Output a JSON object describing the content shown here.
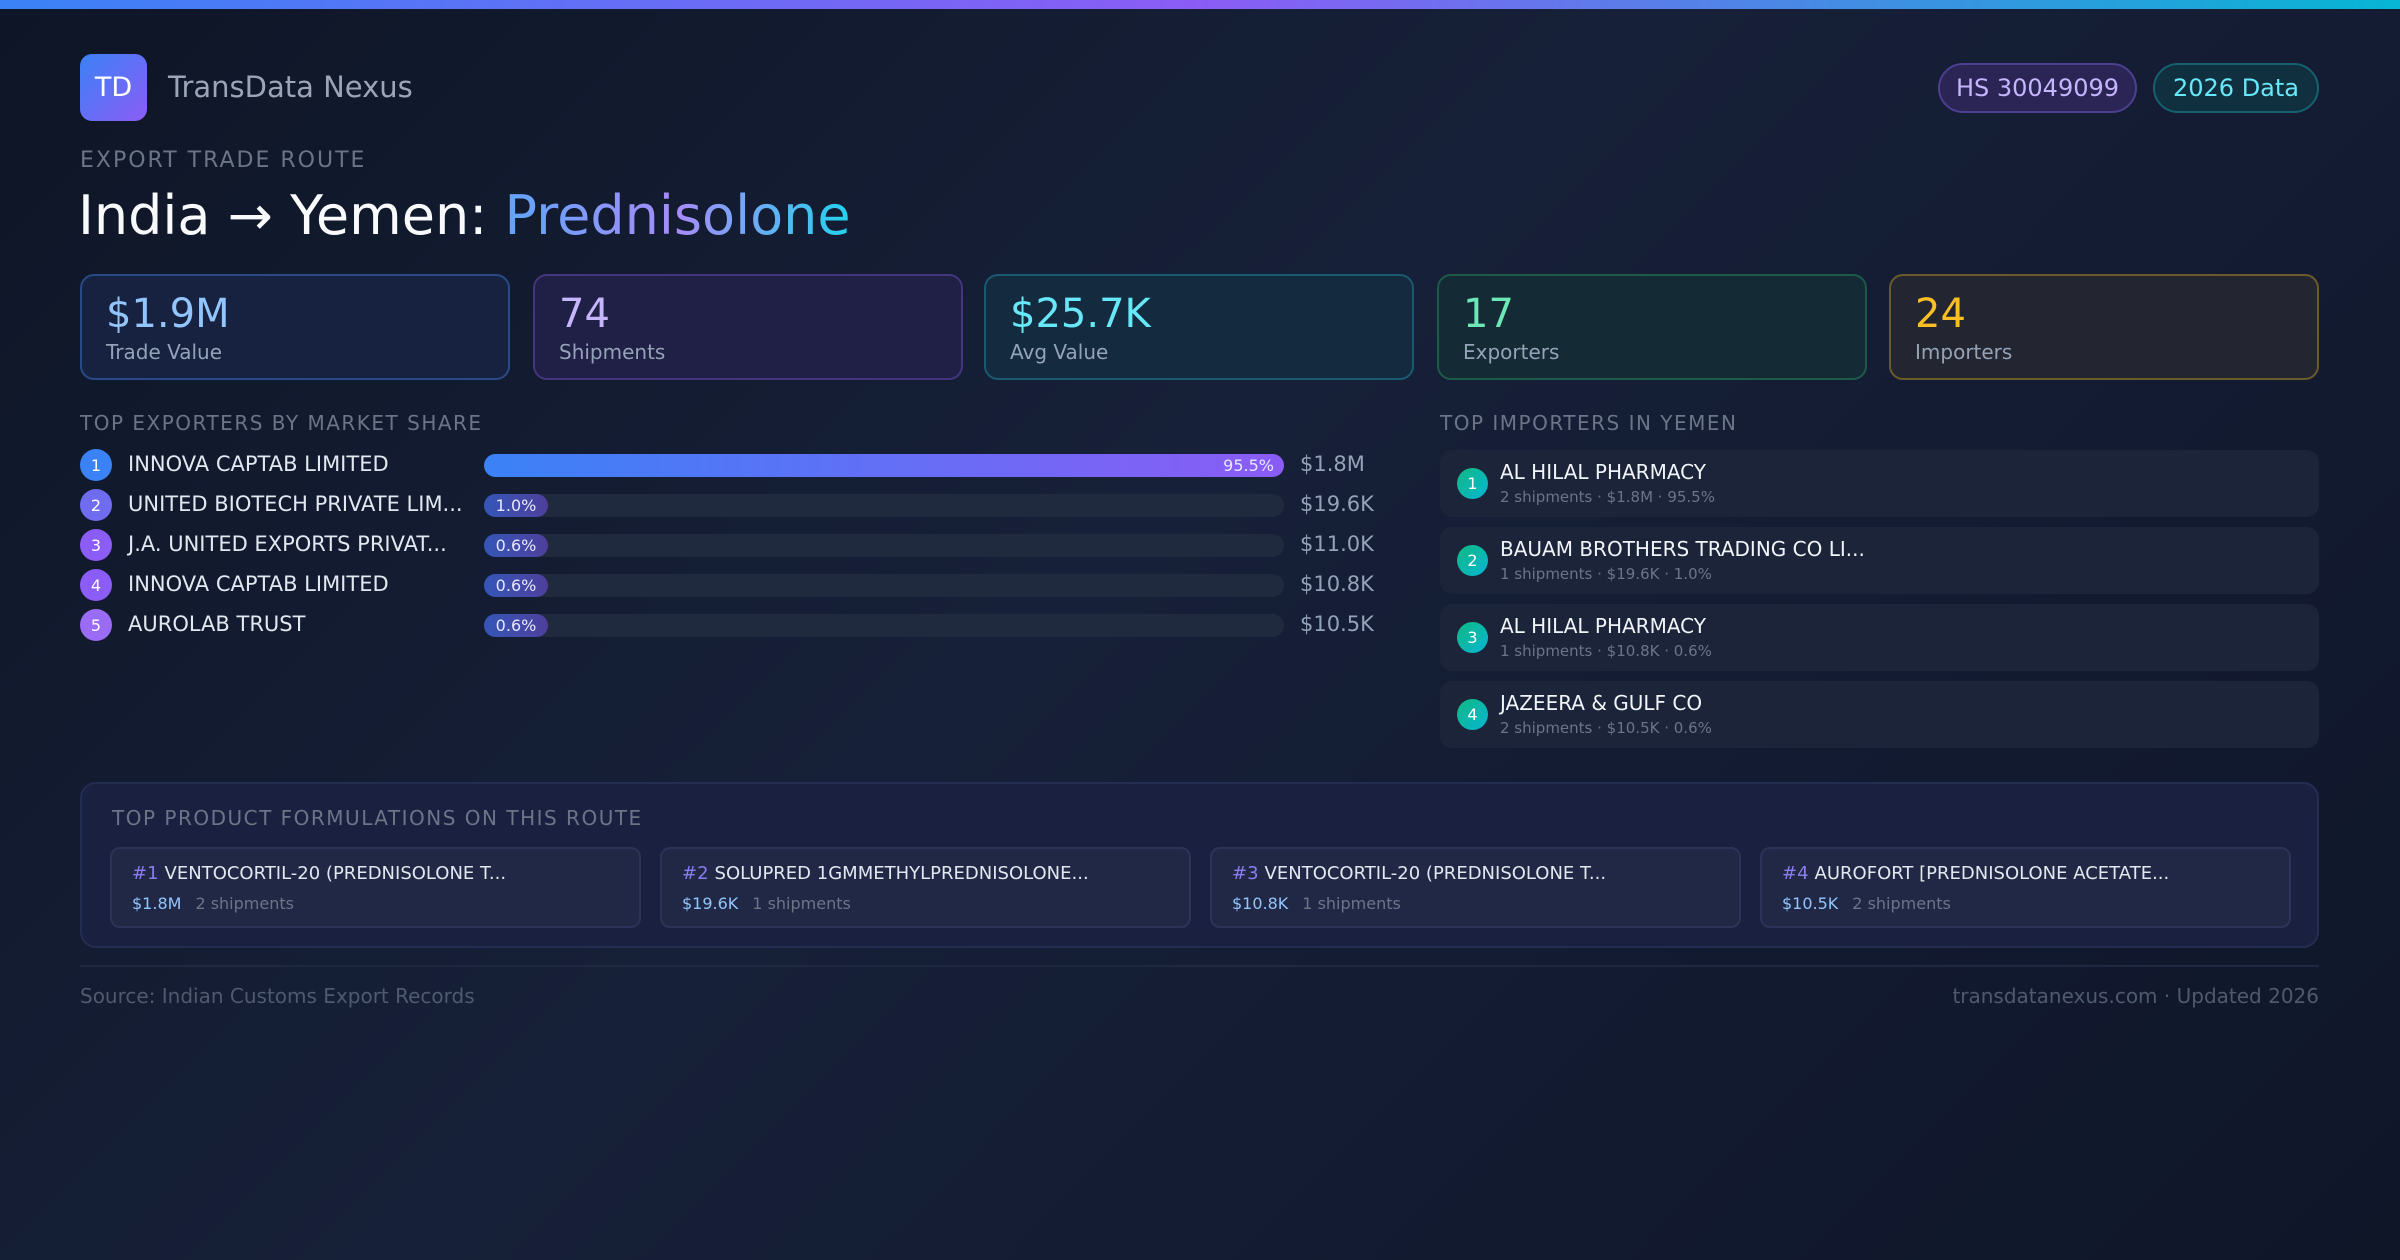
{
  "brand": {
    "logo": "TD",
    "name": "TransData Nexus"
  },
  "badges": {
    "hs": "HS 30049099",
    "year": "2026 Data"
  },
  "header": {
    "eyebrow": "EXPORT TRADE ROUTE",
    "title_prefix": "India → Yemen: ",
    "title_product": "Prednisolone"
  },
  "stats": [
    {
      "value": "$1.9M",
      "label": "Trade Value"
    },
    {
      "value": "74",
      "label": "Shipments"
    },
    {
      "value": "$25.7K",
      "label": "Avg Value"
    },
    {
      "value": "17",
      "label": "Exporters"
    },
    {
      "value": "24",
      "label": "Importers"
    }
  ],
  "exporters": {
    "title": "TOP EXPORTERS BY MARKET SHARE",
    "items": [
      {
        "rank": "1",
        "name": "INNOVA CAPTAB LIMITED",
        "share": "95.5%",
        "share_pct": 95.5,
        "value": "$1.8M"
      },
      {
        "rank": "2",
        "name": "UNITED BIOTECH PRIVATE LIM...",
        "share": "1.0%",
        "share_pct": 1.0,
        "value": "$19.6K"
      },
      {
        "rank": "3",
        "name": "J.A. UNITED EXPORTS PRIVAT...",
        "share": "0.6%",
        "share_pct": 0.6,
        "value": "$11.0K"
      },
      {
        "rank": "4",
        "name": "INNOVA CAPTAB LIMITED",
        "share": "0.6%",
        "share_pct": 0.6,
        "value": "$10.8K"
      },
      {
        "rank": "5",
        "name": "AUROLAB TRUST",
        "share": "0.6%",
        "share_pct": 0.6,
        "value": "$10.5K"
      }
    ]
  },
  "importers": {
    "title": "TOP IMPORTERS IN YEMEN",
    "items": [
      {
        "rank": "1",
        "name": "AL HILAL PHARMACY",
        "detail": "2 shipments · $1.8M · 95.5%"
      },
      {
        "rank": "2",
        "name": "BAUAM BROTHERS TRADING CO LI...",
        "detail": "1 shipments · $19.6K · 1.0%"
      },
      {
        "rank": "3",
        "name": "AL HILAL PHARMACY",
        "detail": "1 shipments · $10.8K · 0.6%"
      },
      {
        "rank": "4",
        "name": "JAZEERA & GULF CO",
        "detail": "2 shipments · $10.5K · 0.6%"
      }
    ]
  },
  "formulations": {
    "title": "TOP PRODUCT FORMULATIONS ON THIS ROUTE",
    "items": [
      {
        "rank": "#1",
        "name": "VENTOCORTIL-20 (PREDNISOLONE T...",
        "value": "$1.8M",
        "shipments": "2 shipments"
      },
      {
        "rank": "#2",
        "name": "SOLUPRED 1GMMETHYLPREDNISOLONE...",
        "value": "$19.6K",
        "shipments": "1 shipments"
      },
      {
        "rank": "#3",
        "name": "VENTOCORTIL-20 (PREDNISOLONE T...",
        "value": "$10.8K",
        "shipments": "1 shipments"
      },
      {
        "rank": "#4",
        "name": "AUROFORT [PREDNISOLONE ACETATE...",
        "value": "$10.5K",
        "shipments": "2 shipments"
      }
    ]
  },
  "footer": {
    "source": "Source: Indian Customs Export Records",
    "site": "transdatanexus.com · Updated 2026"
  }
}
